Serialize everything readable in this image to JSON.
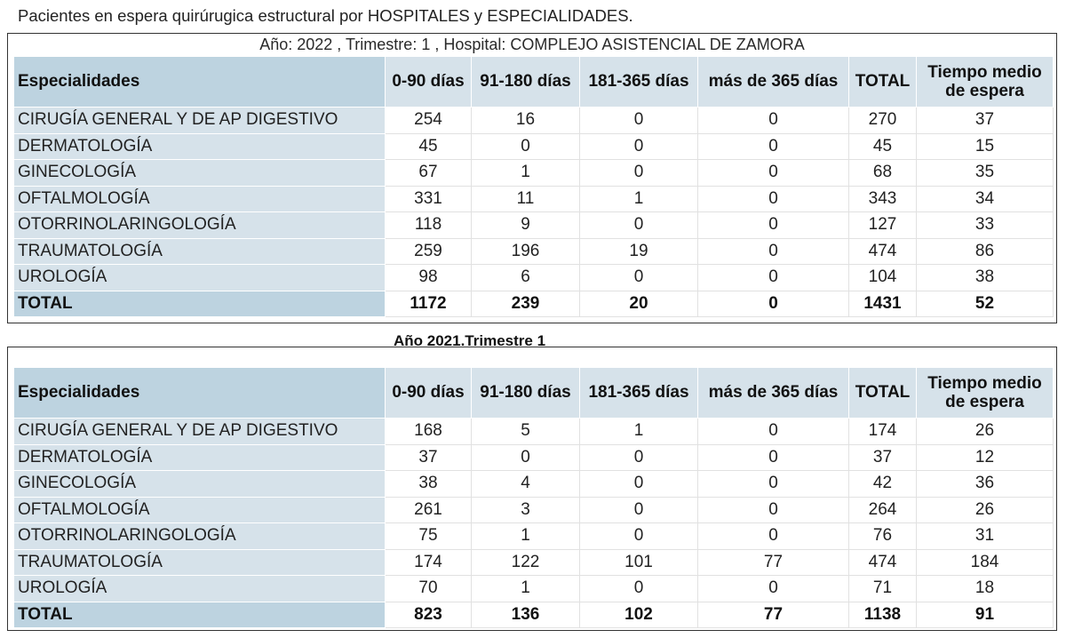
{
  "page_title": "Pacientes en espera quirúrugica estructural por HOSPITALES y ESPECIALIDADES.",
  "columns": [
    "Especialidades",
    "0-90 días",
    "91-180 días",
    "181-365 días",
    "más de 365 días",
    "TOTAL",
    "Tiempo medio de espera"
  ],
  "tables": [
    {
      "caption": "Año: 2022 , Trimestre: 1 , Hospital: COMPLEJO ASISTENCIAL DE ZAMORA",
      "rows": [
        {
          "name": "CIRUGÍA GENERAL Y DE AP DIGESTIVO",
          "values": [
            "254",
            "16",
            "0",
            "0",
            "270",
            "37"
          ]
        },
        {
          "name": "DERMATOLOGÍA",
          "values": [
            "45",
            "0",
            "0",
            "0",
            "45",
            "15"
          ]
        },
        {
          "name": "GINECOLOGÍA",
          "values": [
            "67",
            "1",
            "0",
            "0",
            "68",
            "35"
          ]
        },
        {
          "name": "OFTALMOLOGÍA",
          "values": [
            "331",
            "11",
            "1",
            "0",
            "343",
            "34"
          ]
        },
        {
          "name": "OTORRINOLARINGOLOGÍA",
          "values": [
            "118",
            "9",
            "0",
            "0",
            "127",
            "33"
          ]
        },
        {
          "name": "TRAUMATOLOGÍA",
          "values": [
            "259",
            "196",
            "19",
            "0",
            "474",
            "86"
          ]
        },
        {
          "name": "UROLOGÍA",
          "values": [
            "98",
            "6",
            "0",
            "0",
            "104",
            "38"
          ]
        }
      ],
      "total": {
        "name": "TOTAL",
        "values": [
          "1172",
          "239",
          "20",
          "0",
          "1431",
          "52"
        ]
      }
    },
    {
      "caption": "",
      "rows": [
        {
          "name": "CIRUGÍA GENERAL Y DE AP DIGESTIVO",
          "values": [
            "168",
            "5",
            "1",
            "0",
            "174",
            "26"
          ]
        },
        {
          "name": "DERMATOLOGÍA",
          "values": [
            "37",
            "0",
            "0",
            "0",
            "37",
            "12"
          ]
        },
        {
          "name": "GINECOLOGÍA",
          "values": [
            "38",
            "4",
            "0",
            "0",
            "42",
            "36"
          ]
        },
        {
          "name": "OFTALMOLOGÍA",
          "values": [
            "261",
            "3",
            "0",
            "0",
            "264",
            "26"
          ]
        },
        {
          "name": "OTORRINOLARINGOLOGÍA",
          "values": [
            "75",
            "1",
            "0",
            "0",
            "76",
            "31"
          ]
        },
        {
          "name": "TRAUMATOLOGÍA",
          "values": [
            "174",
            "122",
            "101",
            "77",
            "474",
            "184"
          ]
        },
        {
          "name": "UROLOGÍA",
          "values": [
            "70",
            "1",
            "0",
            "0",
            "71",
            "18"
          ]
        }
      ],
      "total": {
        "name": "TOTAL",
        "values": [
          "823",
          "136",
          "102",
          "77",
          "1138",
          "91"
        ]
      }
    }
  ],
  "overlay_label": "Año 2021.Trimestre 1",
  "colors": {
    "header_bg": "#d6e2ea",
    "header_name_bg": "#bdd3e0",
    "cell_border": "#e1e1e1"
  }
}
